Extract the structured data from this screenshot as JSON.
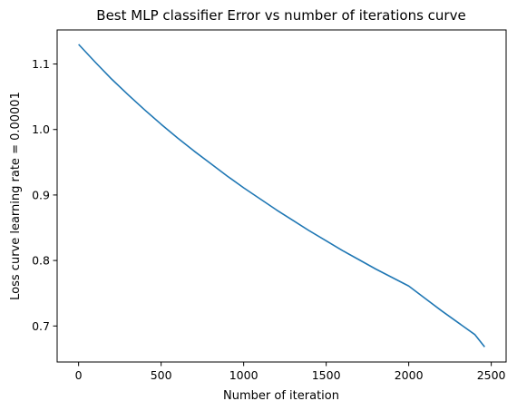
{
  "chart_data": {
    "type": "line",
    "title": "Best MLP classifier Error vs number of iterations curve",
    "xlabel": "Number of iteration",
    "ylabel": "Loss curve learning rate = 0.00001",
    "xlim": [
      -130,
      2590
    ],
    "ylim": [
      0.645,
      1.152
    ],
    "xticks": [
      0,
      500,
      1000,
      1500,
      2000,
      2500
    ],
    "yticks": [
      0.7,
      0.8,
      0.9,
      1.0,
      1.1
    ],
    "xtick_labels": [
      "0",
      "500",
      "1000",
      "1500",
      "2000",
      "2500"
    ],
    "ytick_labels": [
      "0.7",
      "0.8",
      "0.9",
      "1.0",
      "1.1"
    ],
    "grid": false,
    "series": [
      {
        "color": "#1f77b4",
        "x": [
          0,
          100,
          200,
          300,
          400,
          500,
          600,
          700,
          800,
          900,
          1000,
          1100,
          1200,
          1300,
          1400,
          1500,
          1600,
          1700,
          1800,
          1900,
          2000,
          2100,
          2200,
          2300,
          2400,
          2460
        ],
        "y": [
          1.13,
          1.103,
          1.077,
          1.053,
          1.03,
          1.008,
          0.987,
          0.967,
          0.948,
          0.929,
          0.911,
          0.894,
          0.877,
          0.861,
          0.845,
          0.83,
          0.815,
          0.801,
          0.787,
          0.774,
          0.761,
          0.742,
          0.723,
          0.705,
          0.687,
          0.668
        ]
      }
    ]
  }
}
